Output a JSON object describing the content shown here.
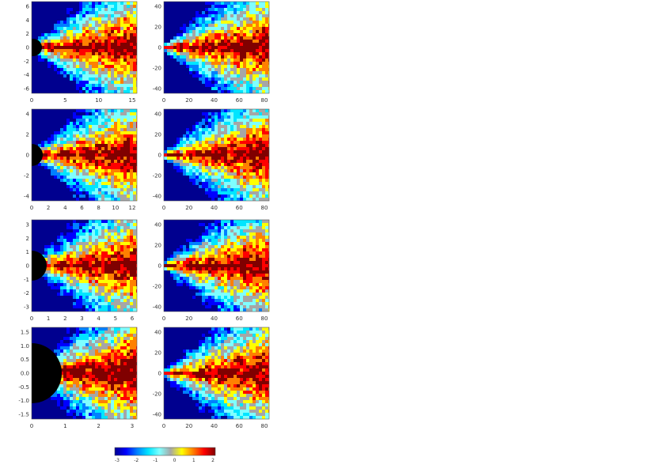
{
  "figure": {
    "panel_rows": 4,
    "panel_cols": 2
  },
  "colormap": {
    "name": "jet",
    "stops": [
      "#00008f",
      "#0000ff",
      "#0080ff",
      "#00e5ff",
      "#7fffff",
      "#a6a6a6",
      "#ffff00",
      "#ff8000",
      "#ff0000",
      "#800000"
    ]
  },
  "chart_data": [
    {
      "type": "heatmap",
      "panel": "row1-left",
      "mask": "black-circle",
      "x_ticks": [
        "0",
        "5",
        "10",
        "15"
      ],
      "y_ticks": [
        "6",
        "4",
        "2",
        "0",
        "-2",
        "-4",
        "-6"
      ]
    },
    {
      "type": "heatmap",
      "panel": "row1-right",
      "x_ticks": [
        "0",
        "20",
        "40",
        "60",
        "80"
      ],
      "y_ticks": [
        "40",
        "20",
        "0",
        "-20",
        "-40"
      ]
    },
    {
      "type": "heatmap",
      "panel": "row2-left",
      "mask": "black-circle",
      "x_ticks": [
        "0",
        "2",
        "4",
        "6",
        "8",
        "10",
        "12"
      ],
      "y_ticks": [
        "4",
        "2",
        "0",
        "-2",
        "-4"
      ]
    },
    {
      "type": "heatmap",
      "panel": "row2-right",
      "x_ticks": [
        "0",
        "20",
        "40",
        "60",
        "80"
      ],
      "y_ticks": [
        "40",
        "20",
        "0",
        "-20",
        "-40"
      ]
    },
    {
      "type": "heatmap",
      "panel": "row3-left",
      "mask": "black-circle",
      "x_ticks": [
        "0",
        "1",
        "2",
        "3",
        "4",
        "5",
        "6"
      ],
      "y_ticks": [
        "3",
        "2",
        "1",
        "0",
        "-1",
        "-2",
        "-3"
      ]
    },
    {
      "type": "heatmap",
      "panel": "row3-right",
      "x_ticks": [
        "0",
        "20",
        "40",
        "60",
        "80"
      ],
      "y_ticks": [
        "40",
        "20",
        "0",
        "-20",
        "-40"
      ]
    },
    {
      "type": "heatmap",
      "panel": "row4-left",
      "mask": "black-circle",
      "x_ticks": [
        "0",
        "1",
        "2",
        "3"
      ],
      "y_ticks": [
        "1.5",
        "1.0",
        "0.5",
        "0.0",
        "-0.5",
        "-1.0",
        "-1.5"
      ]
    },
    {
      "type": "heatmap",
      "panel": "row4-right",
      "x_ticks": [
        "0",
        "20",
        "40",
        "60",
        "80"
      ],
      "y_ticks": [
        "40",
        "20",
        "0",
        "-20",
        "-40"
      ]
    }
  ],
  "colorbar": {
    "tick_labels": [
      "-3",
      "-2",
      "-1",
      "0",
      "1",
      "2"
    ]
  }
}
